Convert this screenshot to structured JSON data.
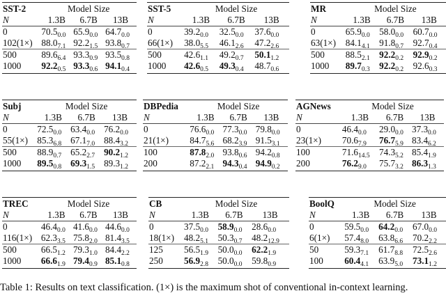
{
  "header_label": "Model Size",
  "n_label": "N",
  "model_sizes": [
    "1.3B",
    "6.7B",
    "13B"
  ],
  "tables": [
    {
      "dataset": "SST-2",
      "rows": [
        {
          "n": "0",
          "cells": [
            {
              "v": "70.5",
              "s": "0.0"
            },
            {
              "v": "65.9",
              "s": "0.0"
            },
            {
              "v": "64.7",
              "s": "0.0"
            }
          ]
        },
        {
          "n": "102(1×)",
          "cells": [
            {
              "v": "88.0",
              "s": "7.1"
            },
            {
              "v": "92.2",
              "s": "1.5"
            },
            {
              "v": "93.8",
              "s": "0.7"
            }
          ]
        },
        {
          "n": "500",
          "cells": [
            {
              "v": "89.6",
              "s": "6.4"
            },
            {
              "v": "93.3",
              "s": "0.9"
            },
            {
              "v": "93.5",
              "s": "0.8"
            }
          ]
        },
        {
          "n": "1000",
          "cells": [
            {
              "v": "92.2",
              "s": "0.5",
              "b": true
            },
            {
              "v": "93.3",
              "s": "0.6",
              "b": true
            },
            {
              "v": "94.1",
              "s": "0.4",
              "b": true
            }
          ]
        }
      ]
    },
    {
      "dataset": "SST-5",
      "rows": [
        {
          "n": "0",
          "cells": [
            {
              "v": "39.2",
              "s": "0.0"
            },
            {
              "v": "32.5",
              "s": "0.0"
            },
            {
              "v": "37.6",
              "s": "0.0"
            }
          ]
        },
        {
          "n": "66(1×)",
          "cells": [
            {
              "v": "38.0",
              "s": "5.5"
            },
            {
              "v": "46.1",
              "s": "2.6"
            },
            {
              "v": "47.2",
              "s": "2.6"
            }
          ]
        },
        {
          "n": "500",
          "cells": [
            {
              "v": "42.6",
              "s": "1.1"
            },
            {
              "v": "49.2",
              "s": "0.7"
            },
            {
              "v": "50.1",
              "s": "1.2",
              "b": true
            }
          ]
        },
        {
          "n": "1000",
          "cells": [
            {
              "v": "42.6",
              "s": "0.5",
              "b": true
            },
            {
              "v": "49.3",
              "s": "0.4",
              "b": true
            },
            {
              "v": "48.7",
              "s": "0.6"
            }
          ]
        }
      ]
    },
    {
      "dataset": "MR",
      "rows": [
        {
          "n": "0",
          "cells": [
            {
              "v": "65.9",
              "s": "0.0"
            },
            {
              "v": "58.0",
              "s": "0.0"
            },
            {
              "v": "60.7",
              "s": "0.0"
            }
          ]
        },
        {
          "n": "63(1×)",
          "cells": [
            {
              "v": "84.1",
              "s": "4.1"
            },
            {
              "v": "91.8",
              "s": "0.7"
            },
            {
              "v": "92.7",
              "s": "0.4"
            }
          ]
        },
        {
          "n": "500",
          "cells": [
            {
              "v": "88.5",
              "s": "2.1"
            },
            {
              "v": "92.2",
              "s": "0.2",
              "b": true
            },
            {
              "v": "92.9",
              "s": "0.2",
              "b": true
            }
          ]
        },
        {
          "n": "1000",
          "cells": [
            {
              "v": "89.7",
              "s": "0.3",
              "b": true
            },
            {
              "v": "92.2",
              "s": "0.2",
              "b": true
            },
            {
              "v": "92.6",
              "s": "0.3"
            }
          ]
        }
      ]
    },
    {
      "dataset": "Subj",
      "rows": [
        {
          "n": "0",
          "cells": [
            {
              "v": "72.5",
              "s": "0.0"
            },
            {
              "v": "63.4",
              "s": "0.0"
            },
            {
              "v": "76.2",
              "s": "0.0"
            }
          ]
        },
        {
          "n": "55(1×)",
          "cells": [
            {
              "v": "85.3",
              "s": "6.8"
            },
            {
              "v": "67.1",
              "s": "7.0"
            },
            {
              "v": "88.4",
              "s": "3.2"
            }
          ]
        },
        {
          "n": "500",
          "cells": [
            {
              "v": "88.9",
              "s": "0.7"
            },
            {
              "v": "65.2",
              "s": "2.7"
            },
            {
              "v": "90.2",
              "s": "1.2",
              "b": true
            }
          ]
        },
        {
          "n": "1000",
          "cells": [
            {
              "v": "89.5",
              "s": "0.8",
              "b": true
            },
            {
              "v": "69.3",
              "s": "1.5",
              "b": true
            },
            {
              "v": "89.3",
              "s": "1.2"
            }
          ]
        }
      ]
    },
    {
      "dataset": "DBPedia",
      "rows": [
        {
          "n": "0",
          "cells": [
            {
              "v": "76.6",
              "s": "0.0"
            },
            {
              "v": "77.3",
              "s": "0.0"
            },
            {
              "v": "79.8",
              "s": "0.0"
            }
          ]
        },
        {
          "n": "21(1×)",
          "cells": [
            {
              "v": "84.7",
              "s": "5.6"
            },
            {
              "v": "68.2",
              "s": "3.9"
            },
            {
              "v": "91.5",
              "s": "3.1"
            }
          ]
        },
        {
          "n": "100",
          "cells": [
            {
              "v": "87.8",
              "s": "2.0",
              "b": true
            },
            {
              "v": "93.8",
              "s": "0.6"
            },
            {
              "v": "94.2",
              "s": "0.8"
            }
          ]
        },
        {
          "n": "200",
          "cells": [
            {
              "v": "87.2",
              "s": "2.1"
            },
            {
              "v": "94.3",
              "s": "0.4",
              "b": true
            },
            {
              "v": "94.9",
              "s": "0.2",
              "b": true
            }
          ]
        }
      ]
    },
    {
      "dataset": "AGNews",
      "rows": [
        {
          "n": "0",
          "cells": [
            {
              "v": "46.4",
              "s": "0.0"
            },
            {
              "v": "29.0",
              "s": "0.0"
            },
            {
              "v": "37.3",
              "s": "0.0"
            }
          ]
        },
        {
          "n": "23(1×)",
          "cells": [
            {
              "v": "70.6",
              "s": "7.9"
            },
            {
              "v": "76.7",
              "s": "5.9",
              "b": true
            },
            {
              "v": "83.4",
              "s": "6.2"
            }
          ]
        },
        {
          "n": "100",
          "cells": [
            {
              "v": "71.6",
              "s": "14.5"
            },
            {
              "v": "74.3",
              "s": "5.2"
            },
            {
              "v": "85.4",
              "s": "1.9"
            }
          ]
        },
        {
          "n": "200",
          "cells": [
            {
              "v": "76.2",
              "s": "9.0",
              "b": true
            },
            {
              "v": "75.7",
              "s": "3.2"
            },
            {
              "v": "86.3",
              "s": "1.3",
              "b": true
            }
          ]
        }
      ]
    },
    {
      "dataset": "TREC",
      "rows": [
        {
          "n": "0",
          "cells": [
            {
              "v": "46.4",
              "s": "0.0"
            },
            {
              "v": "41.6",
              "s": "0.0"
            },
            {
              "v": "44.6",
              "s": "0.0"
            }
          ]
        },
        {
          "n": "116(1×)",
          "cells": [
            {
              "v": "62.3",
              "s": "3.5"
            },
            {
              "v": "75.8",
              "s": "2.0"
            },
            {
              "v": "81.4",
              "s": "3.5"
            }
          ]
        },
        {
          "n": "500",
          "cells": [
            {
              "v": "66.5",
              "s": "1.2"
            },
            {
              "v": "79.3",
              "s": "1.0"
            },
            {
              "v": "84.4",
              "s": "2.2"
            }
          ]
        },
        {
          "n": "1000",
          "cells": [
            {
              "v": "66.6",
              "s": "1.9",
              "b": true
            },
            {
              "v": "79.4",
              "s": "0.9",
              "b": true
            },
            {
              "v": "85.1",
              "s": "0.8",
              "b": true
            }
          ]
        }
      ]
    },
    {
      "dataset": "CB",
      "rows": [
        {
          "n": "0",
          "cells": [
            {
              "v": "37.5",
              "s": "0.0"
            },
            {
              "v": "58.9",
              "s": "0.0",
              "b": true
            },
            {
              "v": "28.6",
              "s": "0.0"
            }
          ]
        },
        {
          "n": "18(1×)",
          "cells": [
            {
              "v": "48.2",
              "s": "5.1"
            },
            {
              "v": "50.3",
              "s": "0.7"
            },
            {
              "v": "48.2",
              "s": "12.9"
            }
          ]
        },
        {
          "n": "125",
          "cells": [
            {
              "v": "56.5",
              "s": "1.9"
            },
            {
              "v": "50.0",
              "s": "0.0"
            },
            {
              "v": "62.2",
              "s": "1.9",
              "b": true
            }
          ]
        },
        {
          "n": "250",
          "cells": [
            {
              "v": "56.9",
              "s": "2.8",
              "b": true
            },
            {
              "v": "50.0",
              "s": "0.0"
            },
            {
              "v": "59.8",
              "s": "0.9"
            }
          ]
        }
      ]
    },
    {
      "dataset": "BoolQ",
      "rows": [
        {
          "n": "0",
          "cells": [
            {
              "v": "59.5",
              "s": "0.0"
            },
            {
              "v": "64.2",
              "s": "0.0",
              "b": true
            },
            {
              "v": "67.0",
              "s": "0.0"
            }
          ]
        },
        {
          "n": "6(1×)",
          "cells": [
            {
              "v": "57.4",
              "s": "8.0"
            },
            {
              "v": "63.8",
              "s": "6.6"
            },
            {
              "v": "70.2",
              "s": "2.2"
            }
          ]
        },
        {
          "n": "50",
          "cells": [
            {
              "v": "59.3",
              "s": "7.1"
            },
            {
              "v": "61.7",
              "s": "8.8"
            },
            {
              "v": "72.5",
              "s": "2.6"
            }
          ]
        },
        {
          "n": "100",
          "cells": [
            {
              "v": "60.4",
              "s": "4.1",
              "b": true
            },
            {
              "v": "63.9",
              "s": "5.0"
            },
            {
              "v": "73.1",
              "s": "1.2",
              "b": true
            }
          ]
        }
      ]
    }
  ],
  "caption": "Table 1: Results on text classification. (1×) is the maximum shot of conventional in-context learning."
}
